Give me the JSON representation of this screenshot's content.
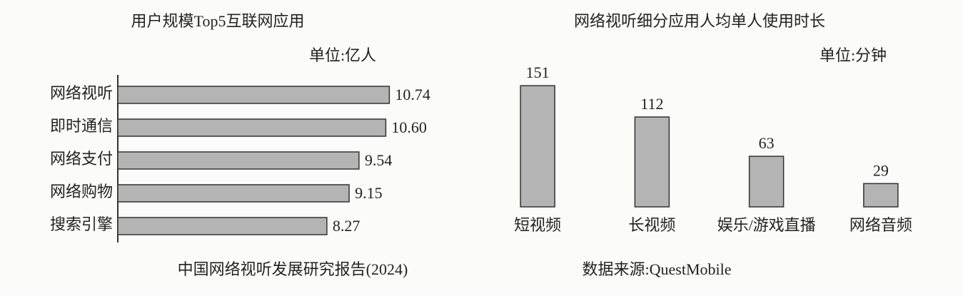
{
  "chart_data": [
    {
      "type": "bar",
      "horizontal": true,
      "title": "用户规模Top5互联网应用",
      "unit": "单位:亿人",
      "categories": [
        "网络视听",
        "即时通信",
        "网络支付",
        "网络购物",
        "搜索引擎"
      ],
      "values": [
        10.74,
        10.6,
        9.54,
        9.15,
        8.27
      ],
      "value_labels": [
        "10.74",
        "10.60",
        "9.54",
        "9.15",
        "8.27"
      ],
      "color": "#b4b4b4",
      "xlim": [
        0,
        12
      ],
      "note": "中国网络视听发展研究报告(2024)"
    },
    {
      "type": "bar",
      "horizontal": false,
      "title": "网络视听细分应用人均单人使用时长",
      "unit": "单位:分钟",
      "categories": [
        "短视频",
        "长视频",
        "娱乐/游戏直播",
        "网络音频"
      ],
      "values": [
        151,
        112,
        63,
        29
      ],
      "color": "#b4b4b4",
      "ylim": [
        0,
        160
      ],
      "note": "数据来源:QuestMobile"
    }
  ]
}
